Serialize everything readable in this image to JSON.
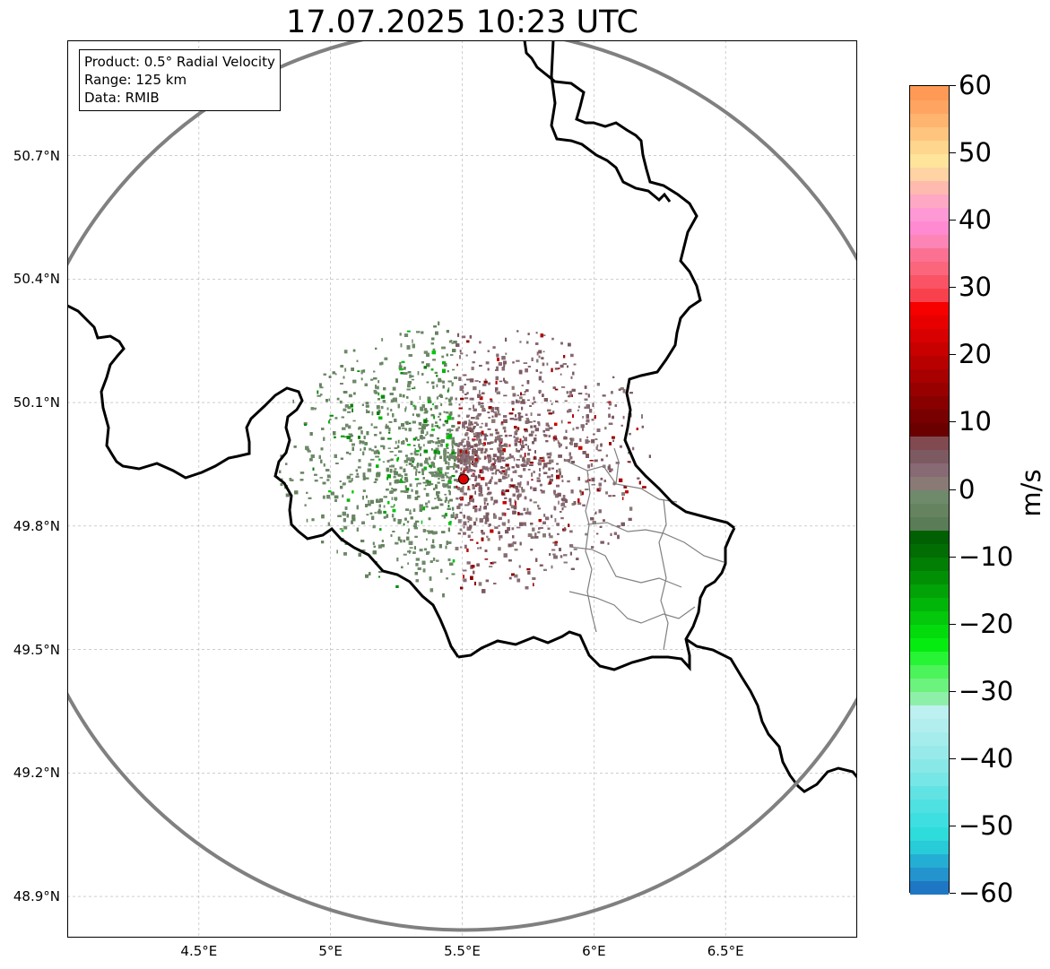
{
  "title": "17.07.2025 10:23 UTC",
  "info_box": {
    "line_product": "Product: 0.5° Radial Velocity",
    "line_range": "Range: 125 km",
    "line_data": "Data: RMIB"
  },
  "map": {
    "lon_range": [
      4.0,
      7.0
    ],
    "lat_range": [
      48.8,
      50.98
    ],
    "lon_ticks": [
      {
        "value": 4.5,
        "label": "4.5°E"
      },
      {
        "value": 5.0,
        "label": "5°E"
      },
      {
        "value": 5.5,
        "label": "5.5°E"
      },
      {
        "value": 6.0,
        "label": "6°E"
      },
      {
        "value": 6.5,
        "label": "6.5°E"
      }
    ],
    "lat_ticks": [
      {
        "value": 50.7,
        "label": "50.7°N"
      },
      {
        "value": 50.4,
        "label": "50.4°N"
      },
      {
        "value": 50.1,
        "label": "50.1°N"
      },
      {
        "value": 49.8,
        "label": "49.8°N"
      },
      {
        "value": 49.5,
        "label": "49.5°N"
      },
      {
        "value": 49.2,
        "label": "49.2°N"
      },
      {
        "value": 48.9,
        "label": "48.9°N"
      }
    ],
    "grid": true,
    "radar_site": {
      "lon": 5.505,
      "lat": 49.914,
      "color": "#e00000"
    },
    "range_ring_km": 125,
    "range_ring_color": "#808080",
    "border_color": "#000000",
    "admin_border_color": "#808080"
  },
  "colorbar": {
    "unit": "m/s",
    "min": -60,
    "max": 60,
    "ticks": [
      {
        "value": 60,
        "label": "60"
      },
      {
        "value": 50,
        "label": "50"
      },
      {
        "value": 40,
        "label": "40"
      },
      {
        "value": 30,
        "label": "30"
      },
      {
        "value": 20,
        "label": "20"
      },
      {
        "value": 10,
        "label": "10"
      },
      {
        "value": 0,
        "label": "0"
      },
      {
        "value": -10,
        "label": "−10"
      },
      {
        "value": -20,
        "label": "−20"
      },
      {
        "value": -30,
        "label": "−30"
      },
      {
        "value": -40,
        "label": "−40"
      },
      {
        "value": -50,
        "label": "−50"
      },
      {
        "value": -60,
        "label": "−60"
      }
    ],
    "bands": [
      {
        "from": -60,
        "to": -58,
        "color": "#1f77c4"
      },
      {
        "from": -58,
        "to": -56,
        "color": "#2394ce"
      },
      {
        "from": -56,
        "to": -54,
        "color": "#25aed3"
      },
      {
        "from": -54,
        "to": -52,
        "color": "#28cbd8"
      },
      {
        "from": -52,
        "to": -50,
        "color": "#2fdcdc"
      },
      {
        "from": -50,
        "to": -48,
        "color": "#3ddfe0"
      },
      {
        "from": -48,
        "to": -46,
        "color": "#4fe1e1"
      },
      {
        "from": -46,
        "to": -44,
        "color": "#62e3e3"
      },
      {
        "from": -44,
        "to": -42,
        "color": "#77e6e6"
      },
      {
        "from": -42,
        "to": -40,
        "color": "#88e8e8"
      },
      {
        "from": -40,
        "to": -38,
        "color": "#98eaea"
      },
      {
        "from": -38,
        "to": -36,
        "color": "#a5ecec"
      },
      {
        "from": -36,
        "to": -34,
        "color": "#b3eeee"
      },
      {
        "from": -34,
        "to": -32,
        "color": "#bdf0f0"
      },
      {
        "from": -32,
        "to": -30,
        "color": "#8ef0a8"
      },
      {
        "from": -30,
        "to": -28,
        "color": "#6cf37e"
      },
      {
        "from": -28,
        "to": -26,
        "color": "#4cf35a"
      },
      {
        "from": -26,
        "to": -24,
        "color": "#26f434"
      },
      {
        "from": -24,
        "to": -22,
        "color": "#05ec10"
      },
      {
        "from": -22,
        "to": -20,
        "color": "#03db0d"
      },
      {
        "from": -20,
        "to": -18,
        "color": "#03c80b"
      },
      {
        "from": -18,
        "to": -16,
        "color": "#02b509"
      },
      {
        "from": -16,
        "to": -14,
        "color": "#02a307"
      },
      {
        "from": -14,
        "to": -12,
        "color": "#019005"
      },
      {
        "from": -12,
        "to": -10,
        "color": "#017e04"
      },
      {
        "from": -10,
        "to": -8,
        "color": "#016d03"
      },
      {
        "from": -8,
        "to": -6,
        "color": "#006002"
      },
      {
        "from": -6,
        "to": -4,
        "color": "#5a7c57"
      },
      {
        "from": -4,
        "to": -2,
        "color": "#66835f"
      },
      {
        "from": -2,
        "to": 0,
        "color": "#6f8a6b"
      },
      {
        "from": 0,
        "to": 2,
        "color": "#8a7a76"
      },
      {
        "from": 2,
        "to": 4,
        "color": "#886a74"
      },
      {
        "from": 4,
        "to": 6,
        "color": "#7d5a62"
      },
      {
        "from": 6,
        "to": 8,
        "color": "#804a50"
      },
      {
        "from": 8,
        "to": 10,
        "color": "#6a0000"
      },
      {
        "from": 10,
        "to": 12,
        "color": "#780000"
      },
      {
        "from": 12,
        "to": 14,
        "color": "#880000"
      },
      {
        "from": 14,
        "to": 16,
        "color": "#980000"
      },
      {
        "from": 16,
        "to": 18,
        "color": "#a80000"
      },
      {
        "from": 18,
        "to": 20,
        "color": "#b80000"
      },
      {
        "from": 20,
        "to": 22,
        "color": "#c80000"
      },
      {
        "from": 22,
        "to": 24,
        "color": "#d80000"
      },
      {
        "from": 24,
        "to": 26,
        "color": "#e80000"
      },
      {
        "from": 26,
        "to": 28,
        "color": "#f60000"
      },
      {
        "from": 28,
        "to": 30,
        "color": "#f8414d"
      },
      {
        "from": 30,
        "to": 32,
        "color": "#fa5365"
      },
      {
        "from": 32,
        "to": 34,
        "color": "#fb667c"
      },
      {
        "from": 34,
        "to": 36,
        "color": "#fc7192"
      },
      {
        "from": 36,
        "to": 38,
        "color": "#fd85b6"
      },
      {
        "from": 38,
        "to": 40,
        "color": "#ff8ad2"
      },
      {
        "from": 40,
        "to": 42,
        "color": "#ff99d5"
      },
      {
        "from": 42,
        "to": 44,
        "color": "#fea8c4"
      },
      {
        "from": 44,
        "to": 46,
        "color": "#ffbab0"
      },
      {
        "from": 46,
        "to": 48,
        "color": "#ffd3a4"
      },
      {
        "from": 48,
        "to": 50,
        "color": "#ffe59b"
      },
      {
        "from": 50,
        "to": 52,
        "color": "#ffd68d"
      },
      {
        "from": 52,
        "to": 54,
        "color": "#ffc57f"
      },
      {
        "from": 54,
        "to": 56,
        "color": "#ffb46f"
      },
      {
        "from": 56,
        "to": 58,
        "color": "#ffa561"
      },
      {
        "from": 58,
        "to": 60,
        "color": "#ff9a56"
      }
    ]
  }
}
